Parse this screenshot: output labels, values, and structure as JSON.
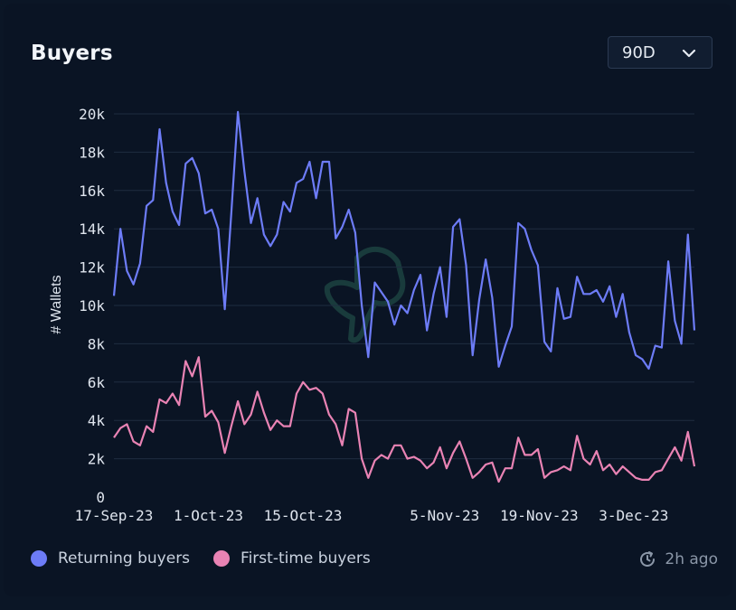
{
  "header": {
    "title": "Buyers",
    "range_value": "90D"
  },
  "footer": {
    "updated": "2h ago"
  },
  "colors": {
    "returning": "#6d7cf7",
    "first_time": "#e983b4",
    "grid": "#1f2c40",
    "axis_text": "#dfe5ee"
  },
  "icons": {
    "range_chevron": "chevron-down-icon",
    "updated": "refresh-clock-icon",
    "watermark": "watermark-logo-icon"
  },
  "chart_data": {
    "type": "line",
    "ylabel": "# Wallets",
    "ylim": [
      0,
      20000
    ],
    "yticks": [
      0,
      2000,
      4000,
      6000,
      8000,
      10000,
      12000,
      14000,
      16000,
      18000,
      20000
    ],
    "ytick_labels": [
      "0",
      "2k",
      "4k",
      "6k",
      "8k",
      "10k",
      "12k",
      "14k",
      "16k",
      "18k",
      "20k"
    ],
    "x_start": "17-Sep-23",
    "x_end": "12-Dec-23",
    "xtick_labels": [
      "17-Sep-23",
      "1-Oct-23",
      "15-Oct-23",
      "5-Nov-23",
      "19-Nov-23",
      "3-Dec-23"
    ],
    "grid": true,
    "legend_position": "bottom-left",
    "series": [
      {
        "name": "Returning buyers",
        "values": [
          10500,
          14000,
          11800,
          11100,
          12200,
          15200,
          15500,
          19200,
          16400,
          14900,
          14200,
          17400,
          17700,
          16900,
          14800,
          15000,
          14000,
          9800,
          14800,
          20100,
          17000,
          14300,
          15600,
          13700,
          13100,
          13700,
          15400,
          14900,
          16400,
          16600,
          17500,
          15600,
          17500,
          17500,
          13500,
          14100,
          15000,
          13800,
          10000,
          7300,
          11200,
          10700,
          10200,
          9000,
          10000,
          9600,
          10800,
          11600,
          8700,
          10600,
          12000,
          9400,
          14100,
          14500,
          12100,
          7400,
          10300,
          12400,
          10400,
          6800,
          7900,
          8900,
          14300,
          14000,
          12900,
          12100,
          8100,
          7600,
          10900,
          9300,
          9400,
          11500,
          10600,
          10600,
          10800,
          10200,
          11000,
          9400,
          10600,
          8600,
          7400,
          7200,
          6700,
          7900,
          7800,
          12300,
          9200,
          8000,
          13700,
          8700
        ]
      },
      {
        "name": "First-time buyers",
        "values": [
          3100,
          3600,
          3800,
          2900,
          2700,
          3700,
          3400,
          5100,
          4900,
          5400,
          4800,
          7100,
          6300,
          7300,
          4200,
          4500,
          3900,
          2300,
          3700,
          5000,
          3800,
          4300,
          5500,
          4400,
          3500,
          4000,
          3700,
          3700,
          5400,
          6000,
          5600,
          5700,
          5400,
          4300,
          3800,
          2700,
          4600,
          4400,
          2000,
          1000,
          1900,
          2200,
          2000,
          2700,
          2700,
          2000,
          2100,
          1900,
          1500,
          1800,
          2600,
          1500,
          2300,
          2900,
          2000,
          1000,
          1300,
          1700,
          1800,
          800,
          1500,
          1500,
          3100,
          2200,
          2200,
          2500,
          1000,
          1300,
          1400,
          1600,
          1400,
          3200,
          2000,
          1700,
          2400,
          1400,
          1700,
          1200,
          1600,
          1300,
          1000,
          900,
          900,
          1300,
          1400,
          2000,
          2600,
          1900,
          3400,
          1600
        ]
      }
    ]
  }
}
